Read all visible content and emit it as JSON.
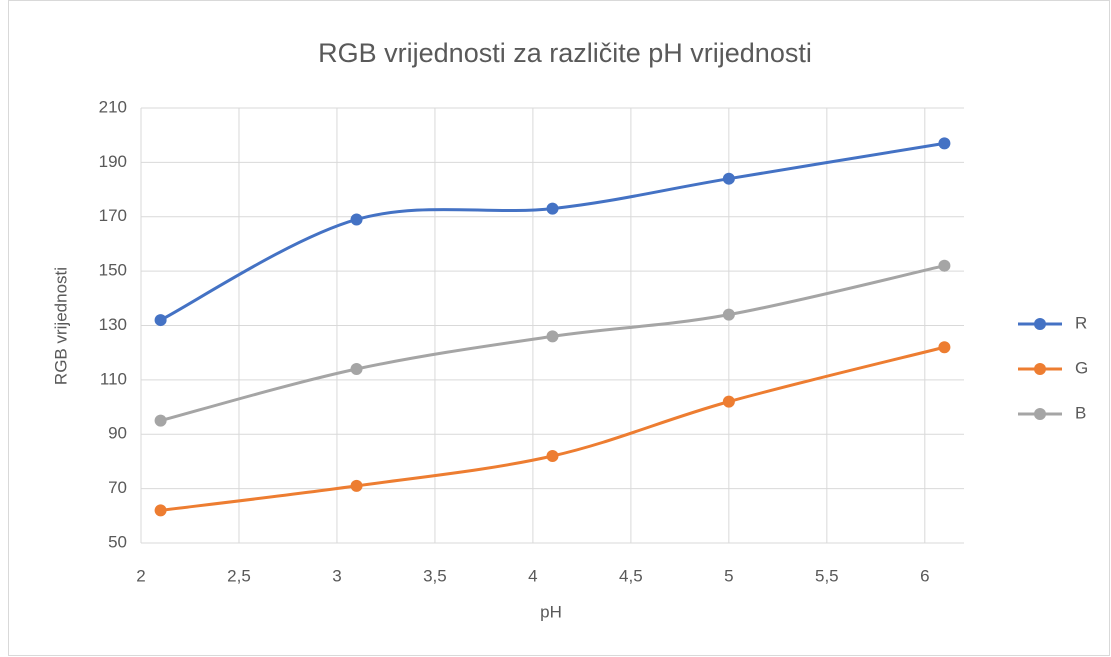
{
  "chart_data": {
    "type": "line",
    "title": "RGB vrijednosti za različite pH vrijednosti",
    "x_label": "pH",
    "y_label": "RGB vrijednosti",
    "x": [
      2.1,
      3.1,
      4.1,
      5,
      6.1
    ],
    "series": [
      {
        "name": "R",
        "color": "#4472c4",
        "values": [
          132,
          169,
          173,
          184,
          197
        ]
      },
      {
        "name": "G",
        "color": "#ed7d31",
        "values": [
          62,
          71,
          82,
          102,
          122
        ]
      },
      {
        "name": "B",
        "color": "#a5a5a5",
        "values": [
          95,
          114,
          126,
          134,
          152
        ]
      }
    ],
    "xlim": [
      2,
      6.2
    ],
    "xticks": [
      2,
      {
        "value": 2.5,
        "label": "2,5"
      },
      3,
      {
        "value": 3.5,
        "label": "3,5"
      },
      4,
      {
        "value": 4.5,
        "label": "4,5"
      },
      5,
      {
        "value": 5.5,
        "label": "5,5"
      },
      6
    ],
    "ylim": [
      50,
      210
    ],
    "yticks": [
      50,
      70,
      90,
      110,
      130,
      150,
      170,
      190,
      210
    ],
    "grid": true,
    "smooth": true,
    "legend": "right"
  }
}
